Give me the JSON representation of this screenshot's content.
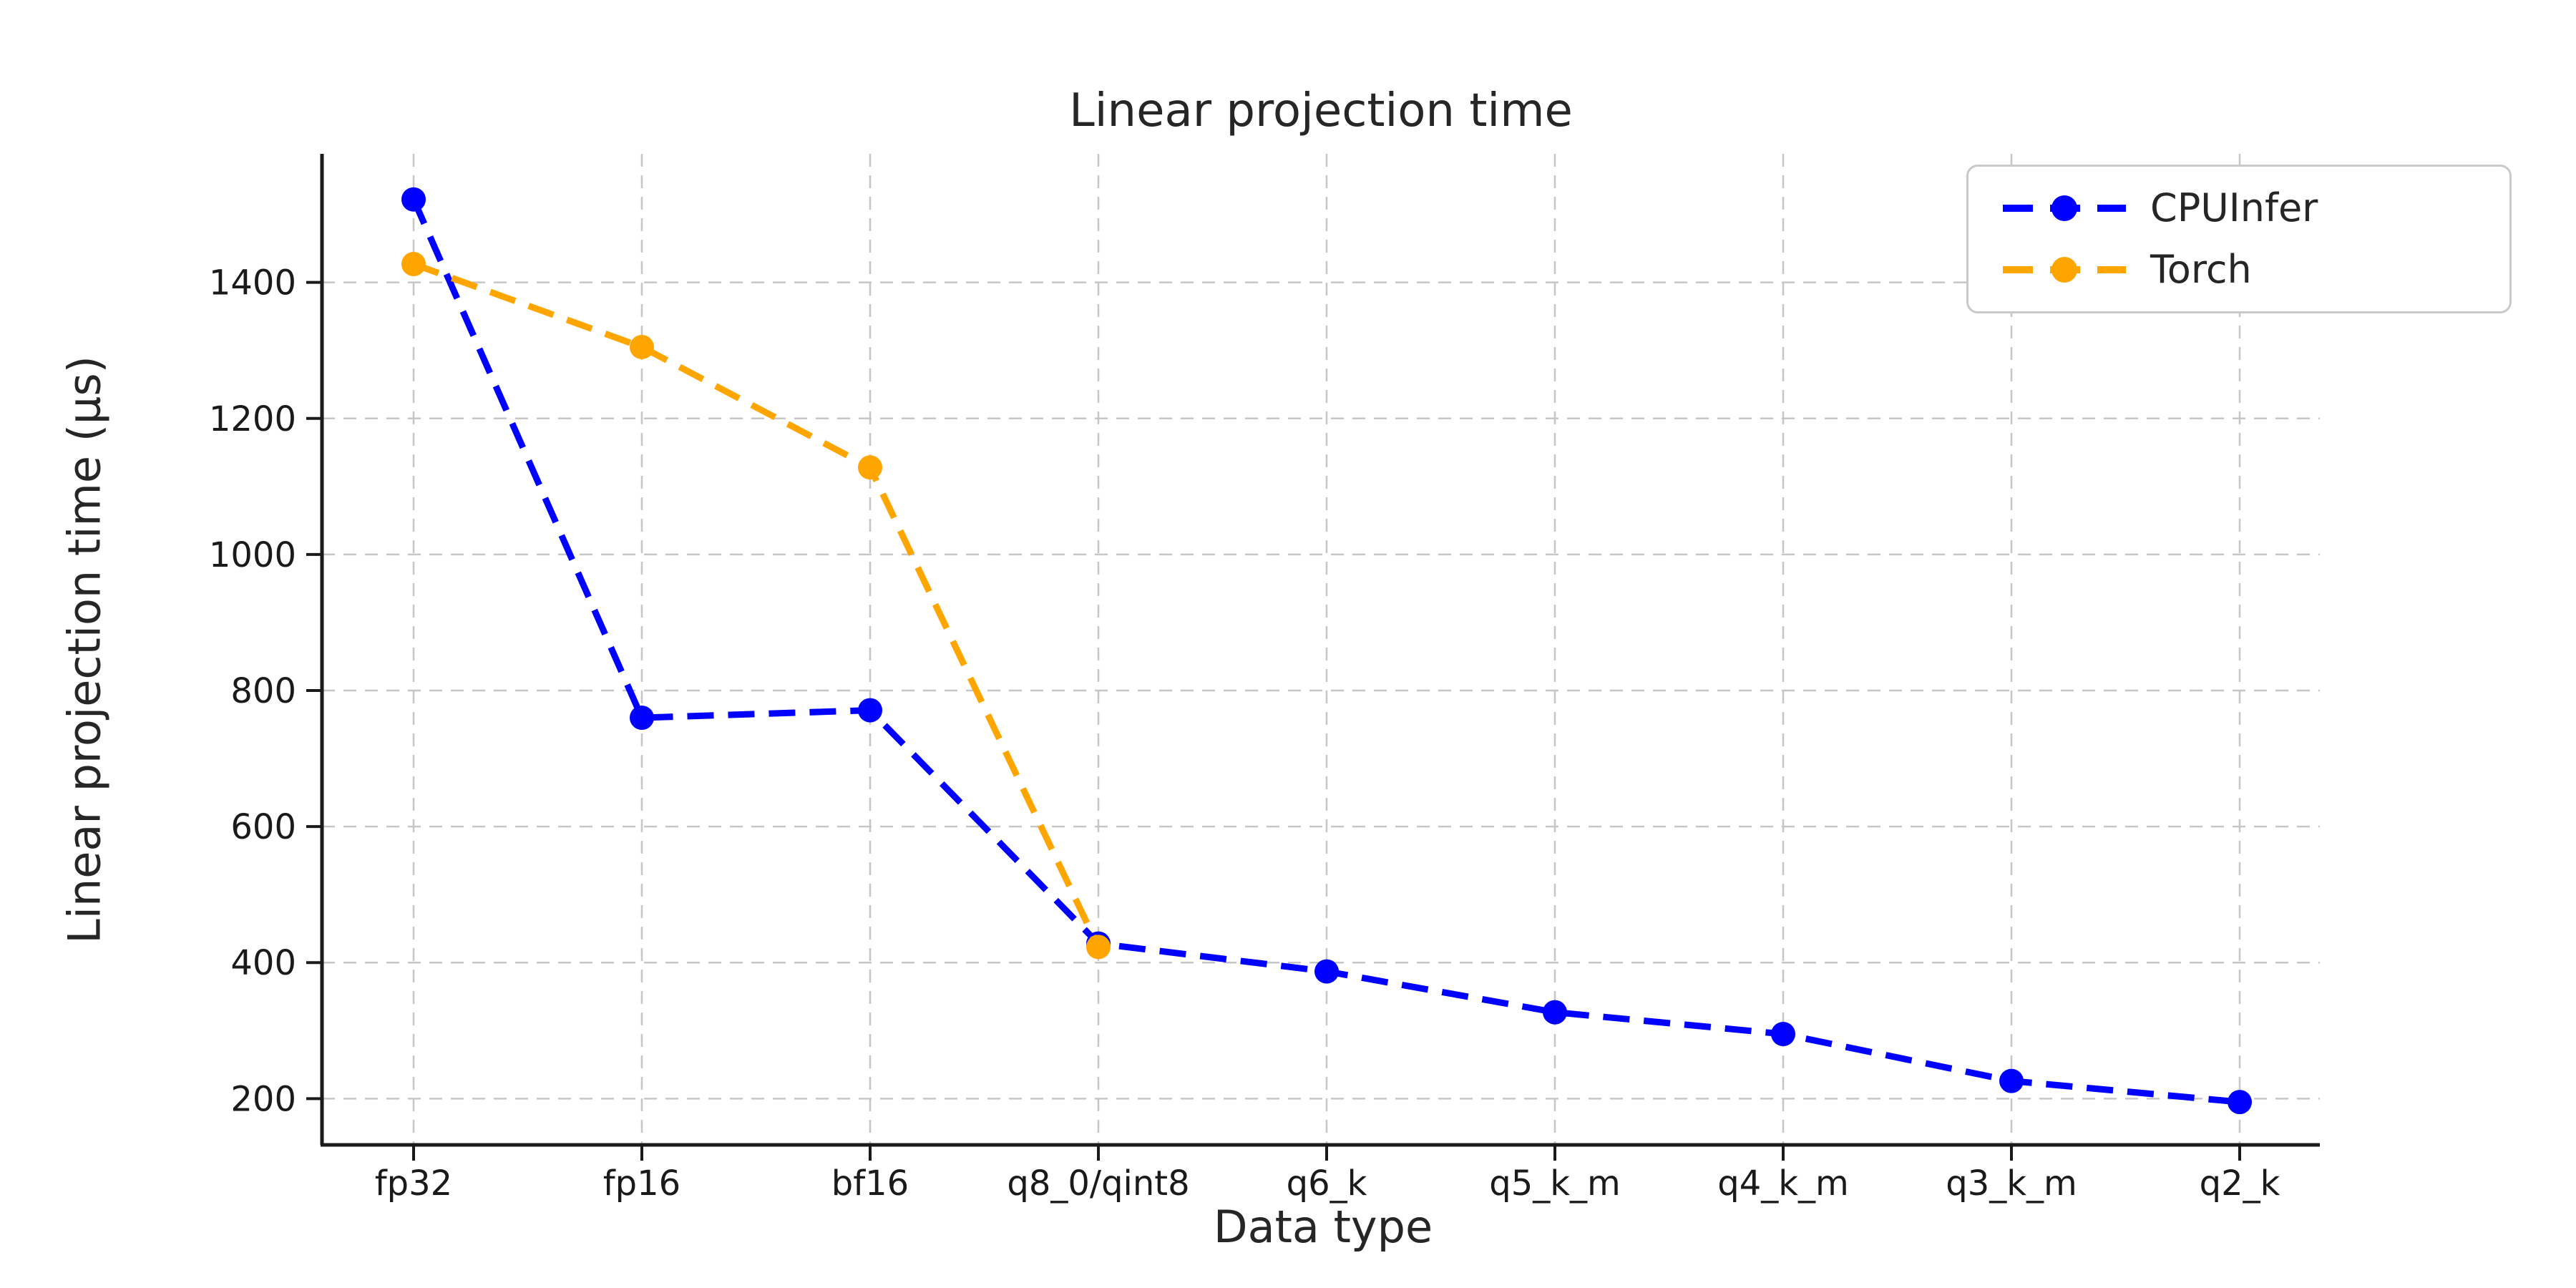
{
  "chart_data": {
    "type": "line",
    "title": "Linear projection time",
    "xlabel": "Data type",
    "ylabel": "Linear projection time (µs)",
    "categories": [
      "fp32",
      "fp16",
      "bf16",
      "q8_0/qint8",
      "q6_k",
      "q5_k_m",
      "q4_k_m",
      "q3_k_m",
      "q2_k"
    ],
    "series": [
      {
        "name": "CPUInfer",
        "color": "#0000ff",
        "values": [
          1522,
          760,
          771,
          428,
          387,
          327,
          295,
          226,
          195
        ]
      },
      {
        "name": "Torch",
        "color": "#ffa500",
        "values": [
          1427,
          1305,
          1128,
          423
        ]
      }
    ],
    "yticks": [
      200,
      400,
      600,
      800,
      1000,
      1200,
      1400
    ],
    "ylim": [
      132,
      1589
    ],
    "grid": true,
    "grid_color": "#c6c6c6",
    "axis_color": "#1a1a1a",
    "text_color": "#262626",
    "line_style": "dashed",
    "marker": "circle",
    "legend_position": "upper right"
  }
}
